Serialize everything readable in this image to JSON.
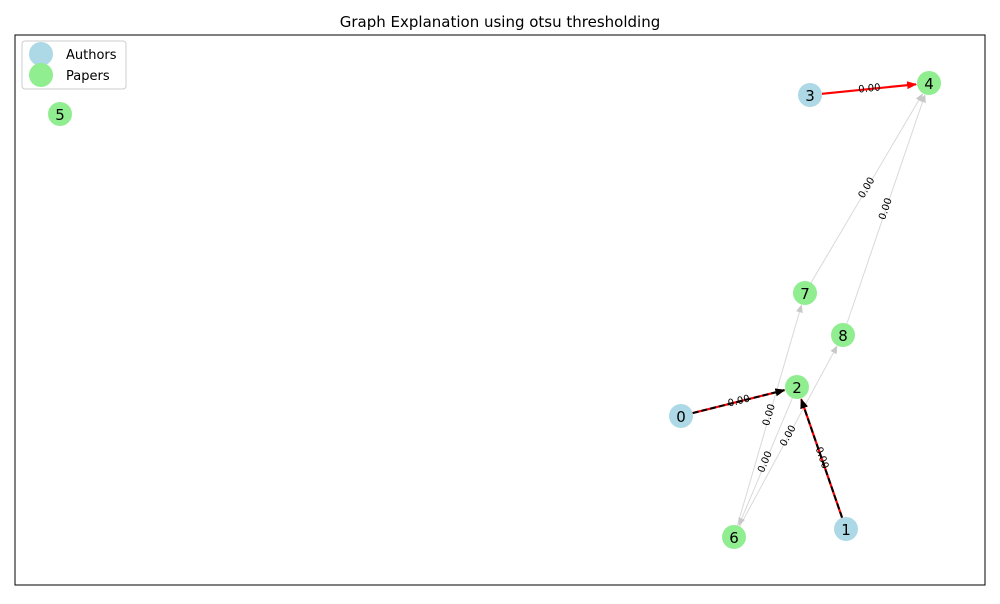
{
  "title": "Graph Explanation using otsu thresholding",
  "legend": {
    "placement": "top-left",
    "items": [
      {
        "label": "Authors",
        "color": "#add8e6"
      },
      {
        "label": "Papers",
        "color": "#90ee90"
      }
    ]
  },
  "colors": {
    "author": "#add8e6",
    "paper": "#90ee90",
    "faint_edge": "#d9d9d9",
    "highlight_edge": "#ff0000",
    "dashed_edge": "#000000"
  },
  "nodes": [
    {
      "id": "0",
      "label": "0",
      "type": "author"
    },
    {
      "id": "1",
      "label": "1",
      "type": "author"
    },
    {
      "id": "2",
      "label": "2",
      "type": "paper"
    },
    {
      "id": "3",
      "label": "3",
      "type": "author"
    },
    {
      "id": "4",
      "label": "4",
      "type": "paper"
    },
    {
      "id": "5",
      "label": "5",
      "type": "paper"
    },
    {
      "id": "6",
      "label": "6",
      "type": "paper"
    },
    {
      "id": "7",
      "label": "7",
      "type": "paper"
    },
    {
      "id": "8",
      "label": "8",
      "type": "paper"
    }
  ],
  "edges": [
    {
      "source": "7",
      "target": "4",
      "weight": "0.00",
      "style": "faint"
    },
    {
      "source": "8",
      "target": "4",
      "weight": "0.00",
      "style": "faint"
    },
    {
      "source": "6",
      "target": "7",
      "weight": "0.00",
      "style": "faint"
    },
    {
      "source": "6",
      "target": "8",
      "weight": "0.00",
      "style": "faint"
    },
    {
      "source": "2",
      "target": "6",
      "weight": "0.00",
      "style": "faint"
    },
    {
      "source": "3",
      "target": "4",
      "weight": "0.00",
      "style": "highlight"
    },
    {
      "source": "0",
      "target": "2",
      "weight": "0.00",
      "style": "highlight-dashed"
    },
    {
      "source": "1",
      "target": "2",
      "weight": "0.00",
      "style": "highlight-dashed"
    }
  ]
}
